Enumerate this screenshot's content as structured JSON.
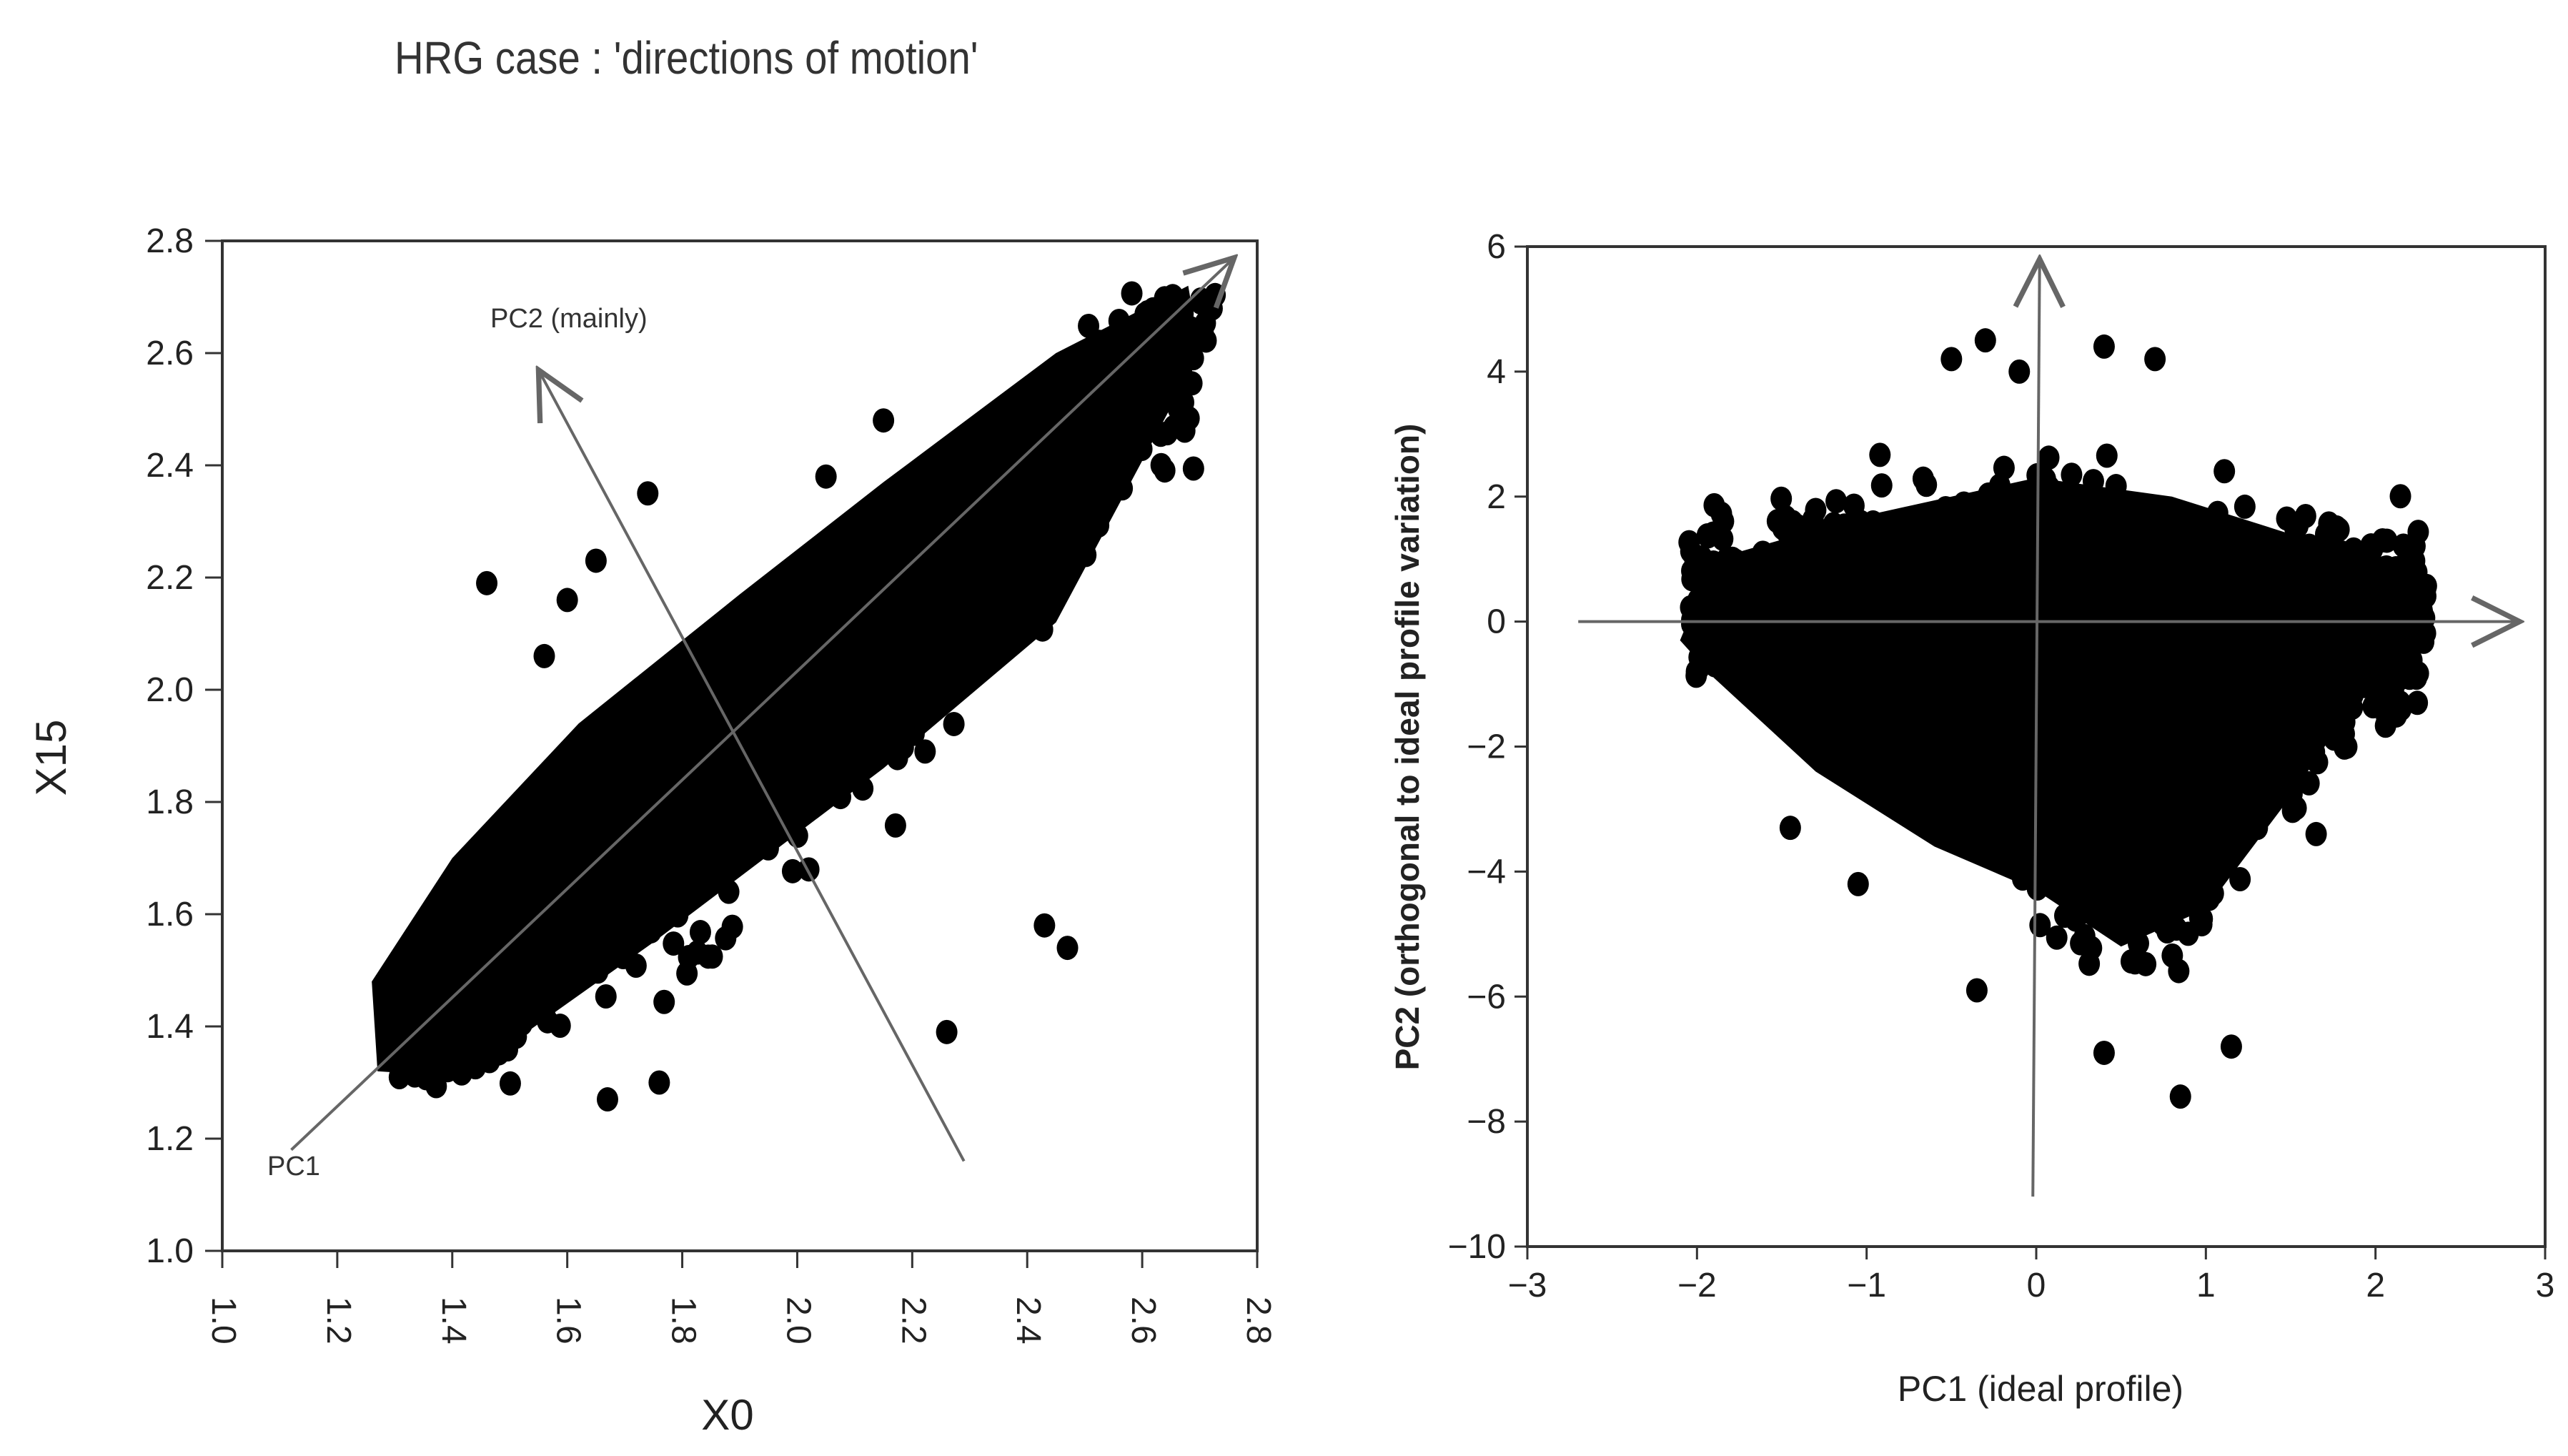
{
  "page": {
    "title": "HRG case : 'directions of motion'"
  },
  "chart_data": [
    {
      "type": "scatter",
      "xlabel": "X0",
      "ylabel": "X15",
      "xlim": [
        1.0,
        2.8
      ],
      "ylim": [
        1.0,
        2.8
      ],
      "xticks": [
        "1.0",
        "1.2",
        "1.4",
        "1.6",
        "1.8",
        "2.0",
        "2.2",
        "2.4",
        "2.6",
        "2.8"
      ],
      "yticks": [
        "1.0",
        "1.2",
        "1.4",
        "1.6",
        "1.8",
        "2.0",
        "2.2",
        "2.4",
        "2.6",
        "2.8"
      ],
      "annotations": [
        {
          "text": "PC2 (mainly)",
          "x": 1.48,
          "y": 2.64
        },
        {
          "text": "PC1",
          "x": 1.05,
          "y": 1.15
        }
      ],
      "arrows": [
        {
          "name": "pc1-arrow",
          "from": [
            1.12,
            1.18
          ],
          "to": [
            2.76,
            2.77
          ]
        },
        {
          "name": "pc2-arrow",
          "from": [
            2.29,
            1.16
          ],
          "to": [
            1.55,
            2.57
          ]
        }
      ],
      "cloud": {
        "x_center": 1.95,
        "y_center": 1.95,
        "spread_major": 0.34,
        "spread_minor": 0.07
      },
      "outliers": [
        [
          1.46,
          2.19
        ],
        [
          1.65,
          2.23
        ],
        [
          1.74,
          2.35
        ],
        [
          1.67,
          1.27
        ],
        [
          1.76,
          1.3
        ],
        [
          2.05,
          2.38
        ],
        [
          2.26,
          1.39
        ],
        [
          2.43,
          1.58
        ],
        [
          2.47,
          1.54
        ],
        [
          2.15,
          2.48
        ],
        [
          1.89,
          2.08
        ],
        [
          1.56,
          2.06
        ],
        [
          1.6,
          2.16
        ]
      ],
      "grid": false
    },
    {
      "type": "scatter",
      "xlabel": "PC1 (ideal profile)",
      "ylabel": "PC2 (orthogonal to ideal profile variation)",
      "xlim": [
        -3,
        3
      ],
      "ylim": [
        -10,
        6
      ],
      "xticks": [
        "−3",
        "−2",
        "−1",
        "0",
        "1",
        "2",
        "3"
      ],
      "yticks": [
        "−10",
        "−8",
        "−6",
        "−4",
        "−2",
        "0",
        "2",
        "4",
        "6"
      ],
      "arrows": [
        {
          "name": "pc1-axis-arrow",
          "from": [
            -2.7,
            0
          ],
          "to": [
            2.85,
            0
          ]
        },
        {
          "name": "pc2-axis-arrow",
          "from": [
            -0.02,
            -9.2
          ],
          "to": [
            0.02,
            5.8
          ]
        }
      ],
      "cloud": {
        "x_center": 0.3,
        "y_center": -0.6,
        "x_range": [
          -2.1,
          2.35
        ],
        "y_range": [
          -6.8,
          4.5
        ]
      },
      "outliers": [
        [
          -0.3,
          4.5
        ],
        [
          -0.5,
          4.2
        ],
        [
          0.4,
          4.4
        ],
        [
          0.7,
          4.2
        ],
        [
          -0.1,
          4.0
        ],
        [
          0.4,
          -6.9
        ],
        [
          0.85,
          -7.6
        ],
        [
          1.15,
          -6.8
        ],
        [
          -1.45,
          -3.3
        ],
        [
          2.15,
          -1.4
        ],
        [
          -1.05,
          -4.2
        ],
        [
          1.65,
          -3.4
        ],
        [
          -0.35,
          -5.9
        ]
      ],
      "grid": false
    }
  ]
}
